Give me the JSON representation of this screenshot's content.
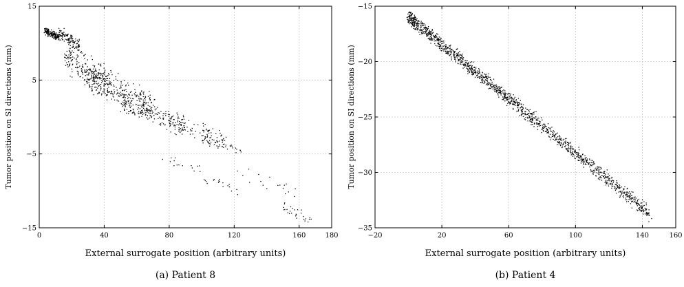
{
  "chart_data": [
    {
      "type": "scatter",
      "caption": "(a) Patient 8",
      "xlabel": "External surrogate position (arbitrary units)",
      "ylabel": "Tumor position on SI directions (mm)",
      "xlim": [
        0,
        180
      ],
      "ylim": [
        -15,
        15
      ],
      "xticks": [
        0,
        40,
        80,
        120,
        160,
        180
      ],
      "yticks": [
        -15,
        -5,
        5,
        15
      ],
      "grid": true,
      "clusters": [
        {
          "x": [
            3,
            12
          ],
          "y": [
            10.5,
            12.0
          ],
          "n": 170
        },
        {
          "x": [
            12,
            25
          ],
          "y": [
            9.0,
            12.0
          ],
          "n": 130
        },
        {
          "x": [
            15,
            45
          ],
          "y": [
            3.0,
            9.5
          ],
          "n": 230
        },
        {
          "x": [
            30,
            70
          ],
          "y": [
            0.0,
            6.5
          ],
          "n": 260
        },
        {
          "x": [
            50,
            90
          ],
          "y": [
            -2.0,
            3.0
          ],
          "n": 180
        },
        {
          "x": [
            80,
            115
          ],
          "y": [
            -4.0,
            0.0
          ],
          "n": 100
        },
        {
          "x": [
            100,
            125
          ],
          "y": [
            -5.0,
            -2.5
          ],
          "n": 35
        },
        {
          "x": [
            75,
            100
          ],
          "y": [
            -7.5,
            -5.0
          ],
          "n": 15
        },
        {
          "x": [
            100,
            125
          ],
          "y": [
            -10.5,
            -8.0
          ],
          "n": 18
        },
        {
          "x": [
            120,
            160
          ],
          "y": [
            -11.0,
            -7.0
          ],
          "n": 18
        },
        {
          "x": [
            150,
            168
          ],
          "y": [
            -14.8,
            -11.5
          ],
          "n": 28
        }
      ]
    },
    {
      "type": "scatter",
      "caption": "(b) Patient 4",
      "xlabel": "External surrogate position (arbitrary units)",
      "ylabel": "Tumor position on SI directions (mm)",
      "xlim": [
        -20,
        160
      ],
      "ylim": [
        -35,
        -15
      ],
      "xticks": [
        -20,
        20,
        60,
        100,
        140,
        160
      ],
      "yticks": [
        -35,
        -30,
        -25,
        -20,
        -15
      ],
      "grid": true,
      "trend": {
        "x_start": 0,
        "y_start": -16.0,
        "x_end": 145,
        "y_end": -33.8,
        "spread": 0.9
      },
      "n": 1500
    }
  ]
}
